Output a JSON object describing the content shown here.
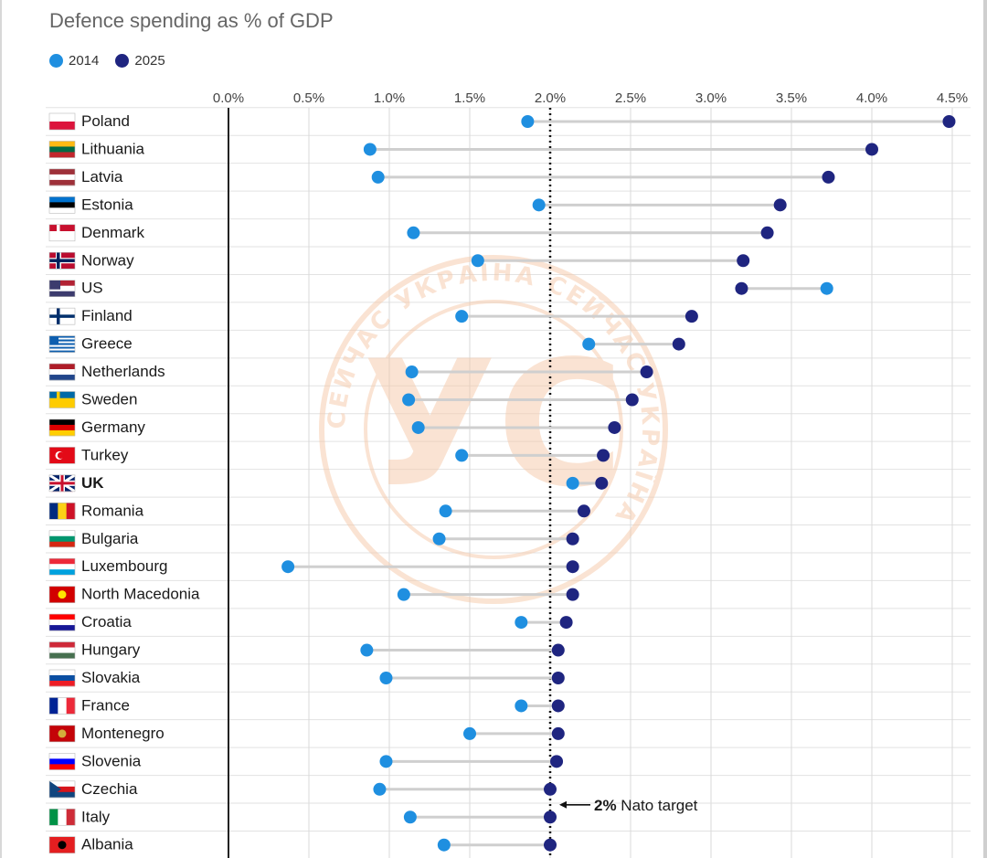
{
  "chart_data": {
    "type": "dumbbell",
    "title": "Defence spending as % of GDP",
    "legend": [
      {
        "label": "2014",
        "color": "#1f8fe0"
      },
      {
        "label": "2025",
        "color": "#1f2580"
      }
    ],
    "x_ticks": [
      "0.0%",
      "0.5%",
      "1.0%",
      "1.5%",
      "2.0%",
      "2.5%",
      "3.0%",
      "3.5%",
      "4.0%",
      "4.5%"
    ],
    "xlim": [
      0,
      4.5
    ],
    "target": {
      "value": 2.0,
      "label_bold": "2%",
      "label_rest": " Nato target"
    },
    "countries": [
      {
        "name": "Poland",
        "v2014": 1.86,
        "v2025": 4.48,
        "flag": [
          "#ffffff",
          "#dc143c"
        ]
      },
      {
        "name": "Lithuania",
        "v2014": 0.88,
        "v2025": 4.0,
        "flag": [
          "#fdb913",
          "#006a44",
          "#c1272d"
        ]
      },
      {
        "name": "Latvia",
        "v2014": 0.93,
        "v2025": 3.73,
        "flag": [
          "#9e3039",
          "#ffffff",
          "#9e3039"
        ]
      },
      {
        "name": "Estonia",
        "v2014": 1.93,
        "v2025": 3.43,
        "flag": [
          "#0072ce",
          "#000000",
          "#ffffff"
        ]
      },
      {
        "name": "Denmark",
        "v2014": 1.15,
        "v2025": 3.35,
        "flag": [
          "#c8102e",
          "#ffffff"
        ]
      },
      {
        "name": "Norway",
        "v2014": 1.55,
        "v2025": 3.2,
        "flag": [
          "#ba0c2f",
          "#ffffff",
          "#00205b"
        ]
      },
      {
        "name": "US",
        "v2014": 3.72,
        "v2025": 3.19,
        "flag": [
          "#b22234",
          "#ffffff",
          "#3c3b6e"
        ]
      },
      {
        "name": "Finland",
        "v2014": 1.45,
        "v2025": 2.88,
        "flag": [
          "#ffffff",
          "#002f6c"
        ]
      },
      {
        "name": "Greece",
        "v2014": 2.24,
        "v2025": 2.8,
        "flag": [
          "#0d5eaf",
          "#ffffff"
        ]
      },
      {
        "name": "Netherlands",
        "v2014": 1.14,
        "v2025": 2.6,
        "flag": [
          "#ae1c28",
          "#ffffff",
          "#21468b"
        ]
      },
      {
        "name": "Sweden",
        "v2014": 1.12,
        "v2025": 2.51,
        "flag": [
          "#006aa7",
          "#fecc00"
        ]
      },
      {
        "name": "Germany",
        "v2014": 1.18,
        "v2025": 2.4,
        "flag": [
          "#000000",
          "#dd0000",
          "#ffce00"
        ]
      },
      {
        "name": "Turkey",
        "v2014": 1.45,
        "v2025": 2.33,
        "flag": [
          "#e30a17",
          "#ffffff"
        ]
      },
      {
        "name": "UK",
        "v2014": 2.14,
        "v2025": 2.32,
        "flag": [
          "#012169",
          "#ffffff",
          "#c8102e"
        ],
        "bold": true
      },
      {
        "name": "Romania",
        "v2014": 1.35,
        "v2025": 2.21,
        "flag": [
          "#002b7f",
          "#fcd116",
          "#ce1126"
        ]
      },
      {
        "name": "Bulgaria",
        "v2014": 1.31,
        "v2025": 2.14,
        "flag": [
          "#ffffff",
          "#00966e",
          "#d62612"
        ]
      },
      {
        "name": "Luxembourg",
        "v2014": 0.37,
        "v2025": 2.14,
        "flag": [
          "#ed2939",
          "#ffffff",
          "#00a1de"
        ]
      },
      {
        "name": "North Macedonia",
        "v2014": 1.09,
        "v2025": 2.14,
        "flag": [
          "#d20000",
          "#ffe600"
        ]
      },
      {
        "name": "Croatia",
        "v2014": 1.82,
        "v2025": 2.1,
        "flag": [
          "#ff0000",
          "#ffffff",
          "#171796"
        ]
      },
      {
        "name": "Hungary",
        "v2014": 0.86,
        "v2025": 2.05,
        "flag": [
          "#ce2939",
          "#ffffff",
          "#477050"
        ]
      },
      {
        "name": "Slovakia",
        "v2014": 0.98,
        "v2025": 2.05,
        "flag": [
          "#ffffff",
          "#0b4ea2",
          "#ee1c25"
        ]
      },
      {
        "name": "France",
        "v2014": 1.82,
        "v2025": 2.05,
        "flag": [
          "#002395",
          "#ffffff",
          "#ed2939"
        ]
      },
      {
        "name": "Montenegro",
        "v2014": 1.5,
        "v2025": 2.05,
        "flag": [
          "#c40308",
          "#d3ae3b"
        ]
      },
      {
        "name": "Slovenia",
        "v2014": 0.98,
        "v2025": 2.04,
        "flag": [
          "#ffffff",
          "#0000ff",
          "#ff0000"
        ]
      },
      {
        "name": "Czechia",
        "v2014": 0.94,
        "v2025": 2.0,
        "flag": [
          "#ffffff",
          "#d7141a",
          "#11457e"
        ]
      },
      {
        "name": "Italy",
        "v2014": 1.13,
        "v2025": 2.0,
        "flag": [
          "#009246",
          "#ffffff",
          "#ce2b37"
        ]
      },
      {
        "name": "Albania",
        "v2014": 1.34,
        "v2025": 2.0,
        "flag": [
          "#e41e20",
          "#000000"
        ]
      }
    ]
  },
  "watermark": {
    "monogram": "УС",
    "ring_text": "СЕЙЧАС УКРАЇНА СЕЙЧАС УКРАЇНА"
  }
}
